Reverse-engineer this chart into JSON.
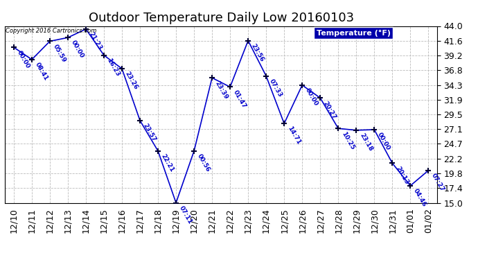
{
  "title": "Outdoor Temperature Daily Low 20160103",
  "copyright_text": "Copyright 2016 Cartronics.com",
  "legend_label": "Temperature (°F)",
  "x_labels": [
    "12/10",
    "12/11",
    "12/12",
    "12/13",
    "12/14",
    "12/15",
    "12/16",
    "12/17",
    "12/18",
    "12/19",
    "12/20",
    "12/21",
    "12/22",
    "12/23",
    "12/24",
    "12/25",
    "12/26",
    "12/27",
    "12/28",
    "12/29",
    "12/30",
    "12/31",
    "01/01",
    "01/02"
  ],
  "temperatures": [
    40.5,
    38.5,
    41.5,
    42.1,
    43.5,
    39.2,
    37.0,
    28.5,
    23.5,
    15.0,
    23.5,
    35.5,
    34.0,
    41.6,
    35.8,
    28.0,
    34.3,
    32.2,
    27.2,
    26.9,
    27.0,
    21.5,
    17.8,
    20.3
  ],
  "time_labels": [
    "00:00",
    "08:41",
    "05:59",
    "00:00",
    "21:23",
    "16:23",
    "23:26",
    "23:57",
    "22:21",
    "07:11",
    "00:56",
    "23:39",
    "01:47",
    "23:56",
    "07:33",
    "14:71",
    "00:00",
    "20:27",
    "10:25",
    "23:18",
    "00:00",
    "20:13",
    "04:46",
    "07:27"
  ],
  "ylim": [
    15.0,
    44.0
  ],
  "yticks": [
    15.0,
    17.4,
    19.8,
    22.2,
    24.7,
    27.1,
    29.5,
    31.9,
    34.3,
    36.8,
    39.2,
    41.6,
    44.0
  ],
  "line_color": "#0000cc",
  "marker_color": "#000033",
  "bg_color": "#ffffff",
  "plot_bg_color": "#ffffff",
  "grid_color": "#bbbbbb",
  "title_fontsize": 13,
  "tick_fontsize": 9,
  "legend_bg_color": "#0000aa",
  "legend_text_color": "#ffffff",
  "border_color": "#000000"
}
